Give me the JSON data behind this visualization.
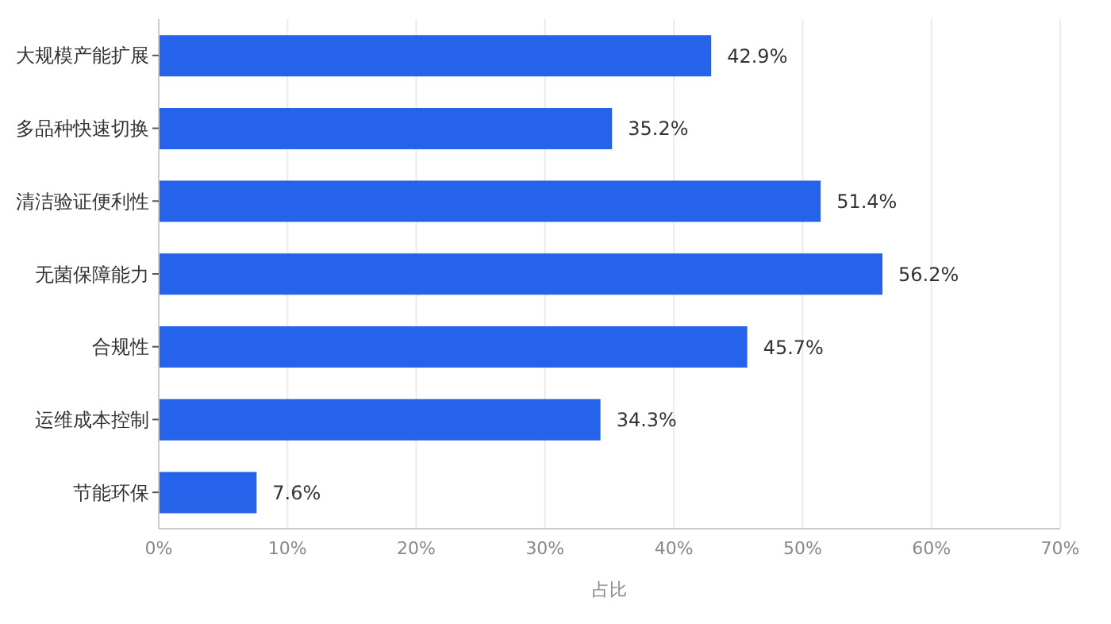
{
  "chart_data": {
    "type": "bar",
    "orientation": "horizontal",
    "xlabel": "占比",
    "categories": [
      "大规模产能扩展",
      "多品种快速切换",
      "清洁验证便利性",
      "无菌保障能力",
      "合规性",
      "运维成本控制",
      "节能环保"
    ],
    "values": [
      42.9,
      35.2,
      51.4,
      56.2,
      45.7,
      34.3,
      7.6
    ],
    "value_labels": [
      "42.9%",
      "35.2%",
      "51.4%",
      "56.2%",
      "45.7%",
      "34.3%",
      "7.6%"
    ],
    "color": "#2563eb",
    "xlim": [
      0,
      70
    ],
    "xticks": [
      {
        "value": 0,
        "label": "0%"
      },
      {
        "value": 10,
        "label": "10%"
      },
      {
        "value": 20,
        "label": "20%"
      },
      {
        "value": 30,
        "label": "30%"
      },
      {
        "value": 40,
        "label": "40%"
      },
      {
        "value": 50,
        "label": "50%"
      },
      {
        "value": 60,
        "label": "60%"
      },
      {
        "value": 70,
        "label": "70%"
      }
    ],
    "grid": "x"
  }
}
